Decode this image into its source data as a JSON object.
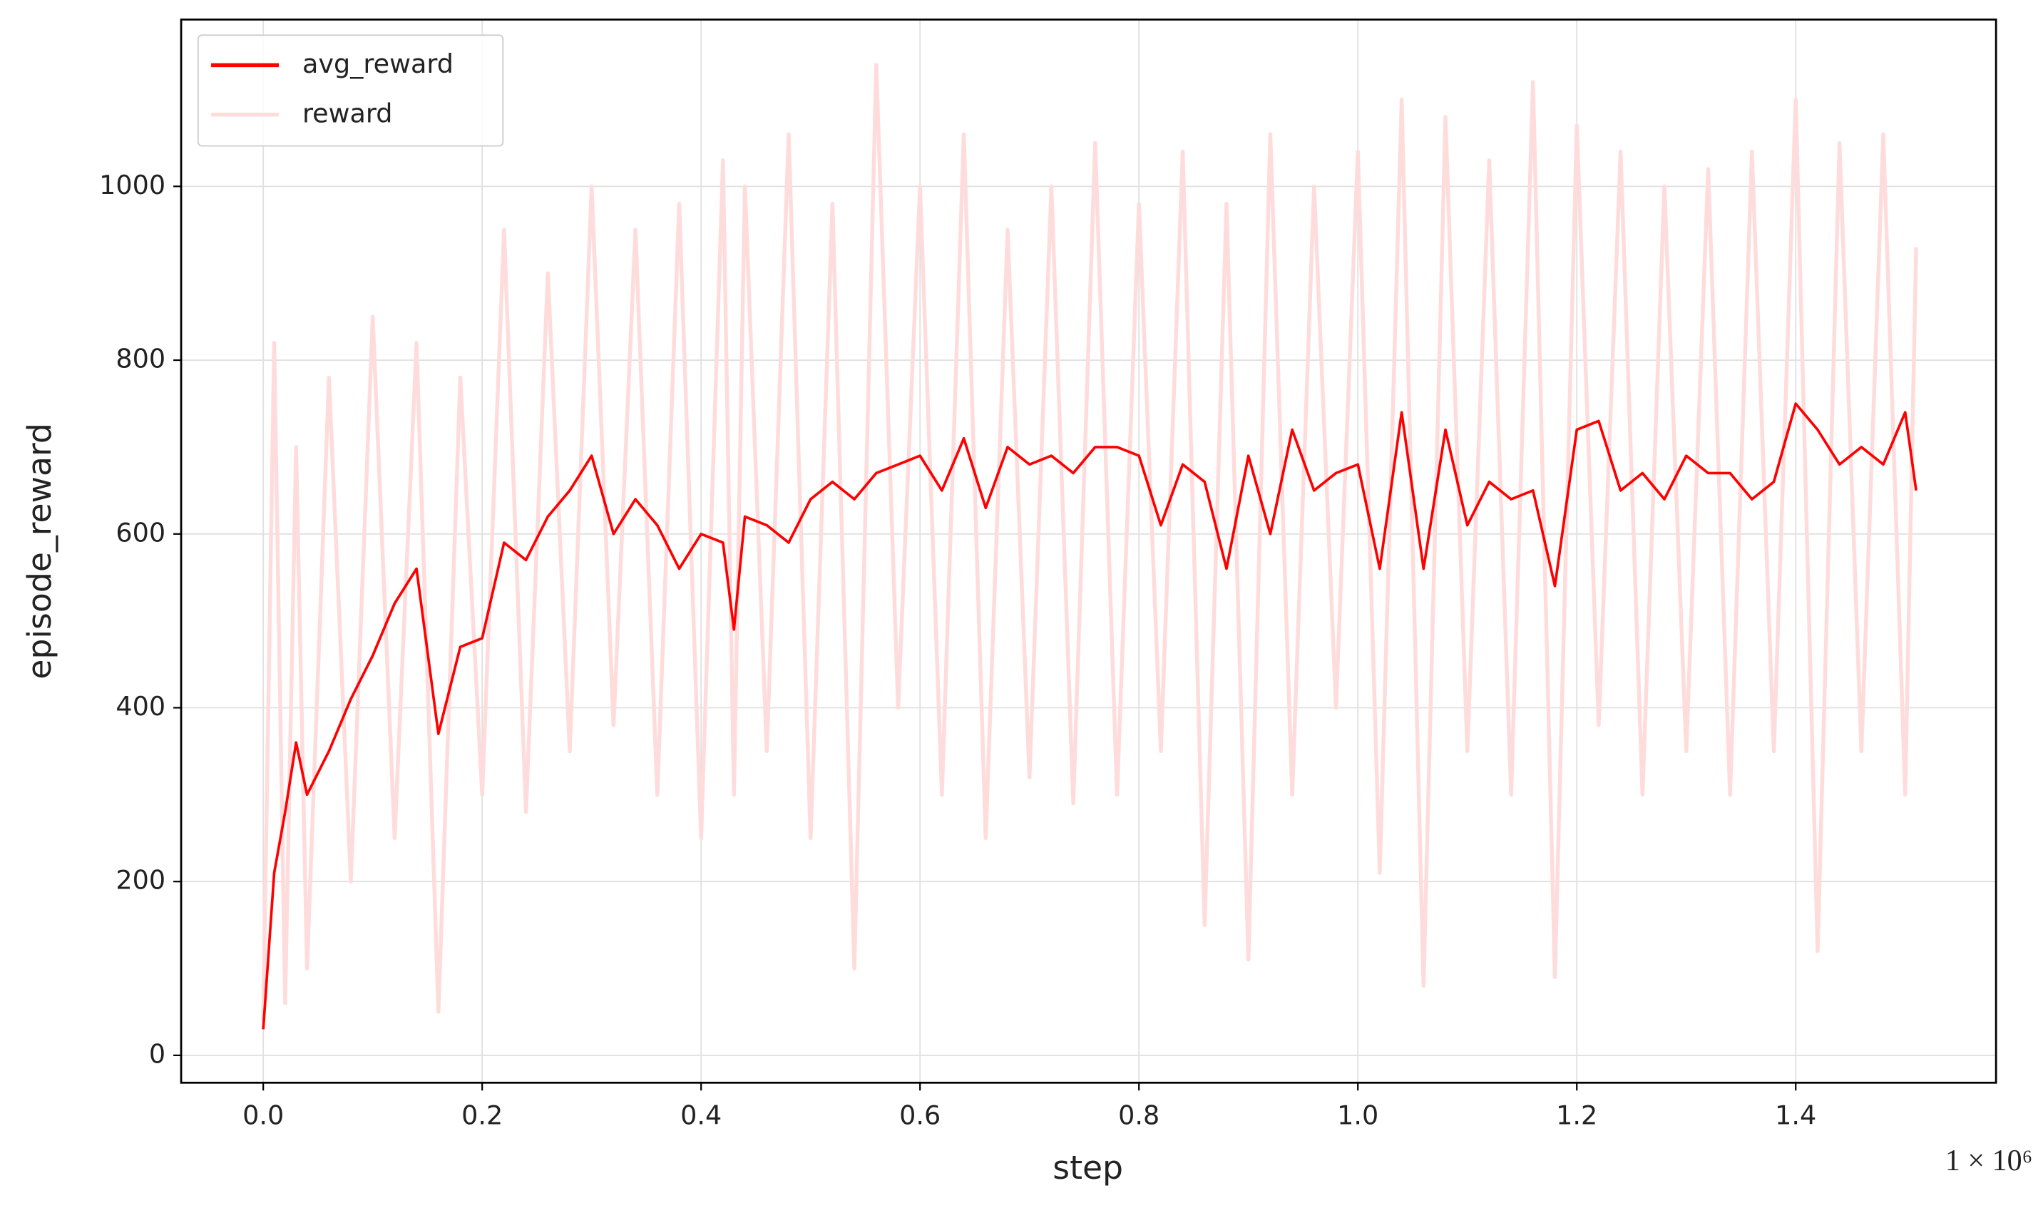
{
  "chart_data": {
    "type": "line",
    "xlabel": "step",
    "ylabel": "episode_reward",
    "x_offset_label": "1 × 10⁶",
    "x": [
      0,
      0.01,
      0.02,
      0.03,
      0.04,
      0.06,
      0.08,
      0.1,
      0.12,
      0.14,
      0.16,
      0.18,
      0.2,
      0.22,
      0.24,
      0.26,
      0.28,
      0.3,
      0.32,
      0.34,
      0.36,
      0.38,
      0.4,
      0.42,
      0.43,
      0.44,
      0.46,
      0.48,
      0.5,
      0.52,
      0.54,
      0.56,
      0.58,
      0.6,
      0.62,
      0.64,
      0.66,
      0.68,
      0.7,
      0.72,
      0.74,
      0.76,
      0.78,
      0.8,
      0.82,
      0.84,
      0.86,
      0.88,
      0.9,
      0.92,
      0.94,
      0.96,
      0.98,
      1.0,
      1.02,
      1.04,
      1.06,
      1.08,
      1.1,
      1.12,
      1.14,
      1.16,
      1.18,
      1.2,
      1.22,
      1.24,
      1.26,
      1.28,
      1.3,
      1.32,
      1.34,
      1.36,
      1.38,
      1.4,
      1.42,
      1.44,
      1.46,
      1.48,
      1.5,
      1.51
    ],
    "series": [
      {
        "name": "avg_reward",
        "color": "#ff0000",
        "values": [
          30,
          210,
          280,
          360,
          300,
          350,
          410,
          460,
          520,
          560,
          370,
          470,
          480,
          590,
          570,
          620,
          650,
          690,
          600,
          640,
          610,
          560,
          600,
          590,
          490,
          620,
          610,
          590,
          640,
          660,
          640,
          670,
          680,
          690,
          650,
          710,
          630,
          700,
          680,
          690,
          670,
          700,
          700,
          690,
          610,
          680,
          660,
          560,
          690,
          600,
          720,
          650,
          670,
          680,
          560,
          740,
          560,
          720,
          610,
          660,
          640,
          650,
          540,
          720,
          730,
          650,
          670,
          640,
          690,
          670,
          670,
          640,
          660,
          750,
          720,
          680,
          700,
          680,
          740,
          650
        ]
      },
      {
        "name": "reward",
        "color": "#ffdcdc",
        "values": [
          40,
          820,
          60,
          700,
          100,
          780,
          200,
          850,
          250,
          820,
          50,
          780,
          300,
          950,
          280,
          900,
          350,
          1000,
          380,
          950,
          300,
          980,
          250,
          1030,
          300,
          1000,
          350,
          1060,
          250,
          980,
          100,
          1140,
          400,
          1000,
          300,
          1060,
          250,
          950,
          320,
          1000,
          290,
          1050,
          300,
          980,
          350,
          1040,
          150,
          980,
          110,
          1060,
          300,
          1000,
          400,
          1040,
          210,
          1100,
          80,
          1080,
          350,
          1030,
          300,
          1120,
          90,
          1070,
          380,
          1040,
          300,
          1000,
          350,
          1020,
          300,
          1040,
          350,
          1100,
          120,
          1050,
          350,
          1060,
          300,
          930
        ]
      }
    ],
    "xlim": [
      -0.075,
      1.583
    ],
    "ylim": [
      -31.5,
      1192
    ],
    "xticks": [
      {
        "value": 0,
        "label": "0.0"
      },
      {
        "value": 0.2,
        "label": "0.2"
      },
      {
        "value": 0.4,
        "label": "0.4"
      },
      {
        "value": 0.6,
        "label": "0.6"
      },
      {
        "value": 0.8,
        "label": "0.8"
      },
      {
        "value": 1,
        "label": "1.0"
      },
      {
        "value": 1.2,
        "label": "1.2"
      },
      {
        "value": 1.4,
        "label": "1.4"
      }
    ],
    "yticks": [
      0,
      200,
      400,
      600,
      800,
      1000
    ],
    "grid": true,
    "legend": "upper left"
  }
}
